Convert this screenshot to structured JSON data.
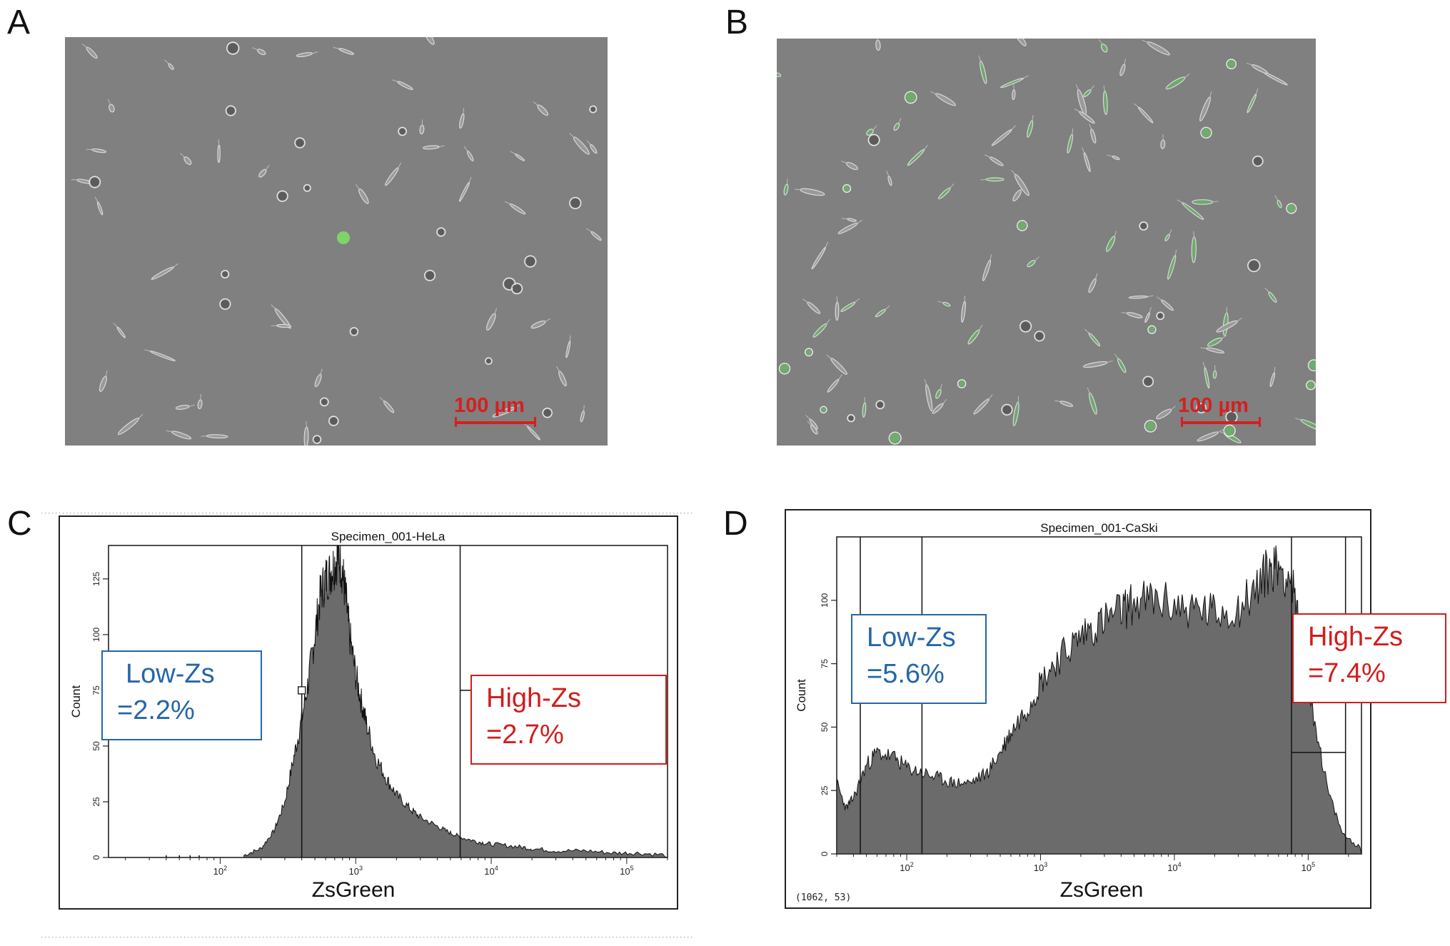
{
  "panels": {
    "a": {
      "letter": "A",
      "scale_label": "100 µm"
    },
    "b": {
      "letter": "B",
      "scale_label": "100 µm"
    },
    "c": {
      "letter": "C",
      "title": "Specimen_001-HeLa",
      "ylabel": "Count",
      "xlabel": "ZsGreen",
      "low_gate": {
        "line1": "Low-Zs",
        "line2": "=2.2%"
      },
      "high_gate": {
        "line1": "High-Zs",
        "line2": "=2.7%"
      }
    },
    "d": {
      "letter": "D",
      "title": "Specimen_001-CaSki",
      "ylabel": "Count",
      "xlabel": "ZsGreen",
      "coord_readout": "(1062, 53)",
      "low_gate": {
        "line1": "Low-Zs",
        "line2": "=5.6%"
      },
      "high_gate": {
        "line1": "High-Zs",
        "line2": "=7.4%"
      }
    }
  },
  "colors": {
    "fill": "#6b6b6b",
    "low": "#2566a8",
    "high": "#d21d1d",
    "scale": "#d61f1f"
  },
  "chart_data": [
    {
      "type": "area",
      "title": "Specimen_001-HeLa",
      "xlabel": "ZsGreen",
      "ylabel": "Count",
      "x_scale": "log",
      "xlim": [
        15,
        200000
      ],
      "ylim": [
        0,
        140
      ],
      "ytick_labels": [
        "0",
        "25",
        "50",
        "75",
        "100",
        "125"
      ],
      "yticks": [
        0,
        25,
        50,
        75,
        100,
        125
      ],
      "xtick_labels": [
        "10^2",
        "10^3",
        "10^4",
        "10^5"
      ],
      "xticks": [
        100,
        1000,
        10000,
        100000
      ],
      "gates_x": [
        400,
        5900
      ],
      "series": [
        {
          "x": [
            150,
            200,
            250,
            300,
            350,
            400,
            450,
            500,
            550,
            600,
            650,
            700,
            750,
            800,
            850,
            900,
            1000,
            1100,
            1200,
            1400,
            1700,
            2000,
            2500,
            3000,
            4000,
            5000,
            6000,
            8000,
            10000,
            15000,
            20000,
            30000,
            50000,
            80000,
            120000,
            200000
          ],
          "y": [
            1,
            4,
            12,
            25,
            45,
            62,
            80,
            100,
            118,
            125,
            128,
            132,
            136,
            128,
            115,
            100,
            82,
            70,
            60,
            45,
            35,
            28,
            22,
            18,
            14,
            11,
            9,
            7,
            6,
            5,
            4,
            3,
            3,
            2,
            2,
            1
          ]
        }
      ]
    },
    {
      "type": "area",
      "title": "Specimen_001-CaSki",
      "xlabel": "ZsGreen",
      "ylabel": "Count",
      "x_scale": "log",
      "xlim": [
        30,
        250000
      ],
      "ylim": [
        0,
        125
      ],
      "ytick_labels": [
        "0",
        "25",
        "50",
        "75",
        "100"
      ],
      "yticks": [
        0,
        25,
        50,
        75,
        100
      ],
      "xtick_labels": [
        "10^2",
        "10^3",
        "10^4",
        "10^5"
      ],
      "xticks": [
        100,
        1000,
        10000,
        100000
      ],
      "gates_x": [
        45,
        130,
        75000,
        190000
      ],
      "series": [
        {
          "x": [
            30,
            35,
            40,
            50,
            60,
            80,
            100,
            130,
            170,
            220,
            300,
            400,
            500,
            600,
            800,
            1000,
            1300,
            1700,
            2200,
            3000,
            4000,
            5000,
            7000,
            10000,
            15000,
            20000,
            30000,
            40000,
            50000,
            60000,
            75000,
            90000,
            110000,
            140000,
            180000,
            250000
          ],
          "y": [
            28,
            18,
            22,
            35,
            40,
            38,
            34,
            32,
            30,
            28,
            28,
            32,
            40,
            48,
            58,
            68,
            76,
            82,
            88,
            92,
            96,
            99,
            100,
            98,
            96,
            95,
            97,
            104,
            112,
            114,
            108,
            80,
            55,
            25,
            8,
            2
          ]
        }
      ]
    }
  ]
}
